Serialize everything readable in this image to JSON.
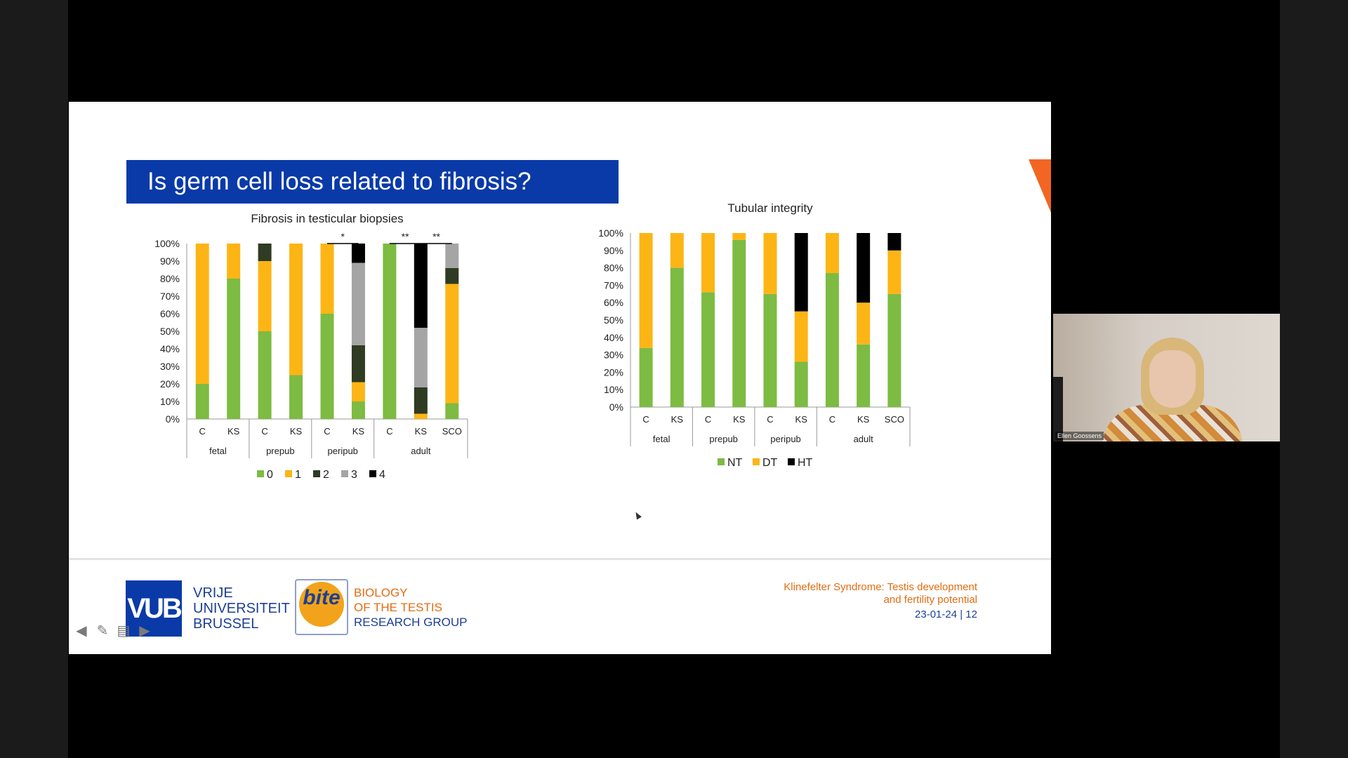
{
  "slide": {
    "title": "Is germ cell loss related to fibrosis?",
    "footer": {
      "vub_logo_text": "VUB",
      "vub_line1": "VRIJE",
      "vub_line2": "UNIVERSITEIT",
      "vub_line3": "BRUSSEL",
      "bite_logo_text": "bite",
      "bite_line1": "BIOLOGY",
      "bite_line2": "OF THE TESTIS",
      "bite_line3": "RESEARCH GROUP",
      "talk_line1": "Klinefelter Syndrome: Testis development",
      "talk_line2": "and fertility potential",
      "date_page": "23-01-24 | 12"
    },
    "nav": {
      "prev": "prev-arrow-icon",
      "pen": "pen-icon",
      "menu": "menu-icon",
      "next": "next-arrow-icon"
    }
  },
  "webcam": {
    "name": "Ellen Goossens"
  },
  "colors": {
    "green": "#7dbb42",
    "orange": "#fdb515",
    "dark_green": "#2f3b22",
    "grey": "#a5a5a5",
    "black": "#000000",
    "title_blue": "#0a3aa8",
    "accent_orange": "#e26c12"
  },
  "chart_data": [
    {
      "type": "bar",
      "stacked": true,
      "title": "Fibrosis in testicular biopsies",
      "categories": [
        "C",
        "KS",
        "C",
        "KS",
        "C",
        "KS",
        "C",
        "KS",
        "SCO"
      ],
      "groups": [
        {
          "label": "fetal",
          "span": 2
        },
        {
          "label": "prepub",
          "span": 2
        },
        {
          "label": "peripub",
          "span": 2
        },
        {
          "label": "adult",
          "span": 3
        }
      ],
      "yticks": [
        "0%",
        "10%",
        "20%",
        "30%",
        "40%",
        "50%",
        "60%",
        "70%",
        "80%",
        "90%",
        "100%"
      ],
      "ylim": [
        0,
        100
      ],
      "series": [
        {
          "name": "0",
          "color": "#7dbb42",
          "values": [
            20,
            80,
            50,
            25,
            60,
            10,
            100,
            0,
            9
          ]
        },
        {
          "name": "1",
          "color": "#fdb515",
          "values": [
            80,
            20,
            40,
            75,
            40,
            11,
            0,
            3,
            68
          ]
        },
        {
          "name": "2",
          "color": "#2f3b22",
          "values": [
            0,
            0,
            10,
            0,
            0,
            21,
            0,
            15,
            9
          ]
        },
        {
          "name": "3",
          "color": "#a5a5a5",
          "values": [
            0,
            0,
            0,
            0,
            0,
            47,
            0,
            34,
            14
          ]
        },
        {
          "name": "4",
          "color": "#000000",
          "values": [
            0,
            0,
            0,
            0,
            0,
            11,
            0,
            48,
            0
          ]
        }
      ],
      "significance": [
        {
          "from": 4,
          "to": 5,
          "label": "*"
        },
        {
          "from": 6,
          "to": 7,
          "label": "**"
        },
        {
          "from": 7,
          "to": 8,
          "label": "**"
        }
      ],
      "legend_position": "bottom"
    },
    {
      "type": "bar",
      "stacked": true,
      "title": "Tubular integrity",
      "categories": [
        "C",
        "KS",
        "C",
        "KS",
        "C",
        "KS",
        "C",
        "KS",
        "SCO"
      ],
      "groups": [
        {
          "label": "fetal",
          "span": 2
        },
        {
          "label": "prepub",
          "span": 2
        },
        {
          "label": "peripub",
          "span": 2
        },
        {
          "label": "adult",
          "span": 3
        }
      ],
      "yticks": [
        "0%",
        "10%",
        "20%",
        "30%",
        "40%",
        "50%",
        "60%",
        "70%",
        "80%",
        "90%",
        "100%"
      ],
      "ylim": [
        0,
        100
      ],
      "series": [
        {
          "name": "NT",
          "color": "#7dbb42",
          "values": [
            34,
            80,
            66,
            96,
            65,
            26,
            77,
            36,
            65
          ]
        },
        {
          "name": "DT",
          "color": "#fdb515",
          "values": [
            66,
            20,
            34,
            4,
            35,
            29,
            23,
            24,
            25
          ]
        },
        {
          "name": "HT",
          "color": "#000000",
          "values": [
            0,
            0,
            0,
            0,
            0,
            45,
            0,
            40,
            10
          ]
        }
      ],
      "legend_position": "bottom"
    }
  ]
}
